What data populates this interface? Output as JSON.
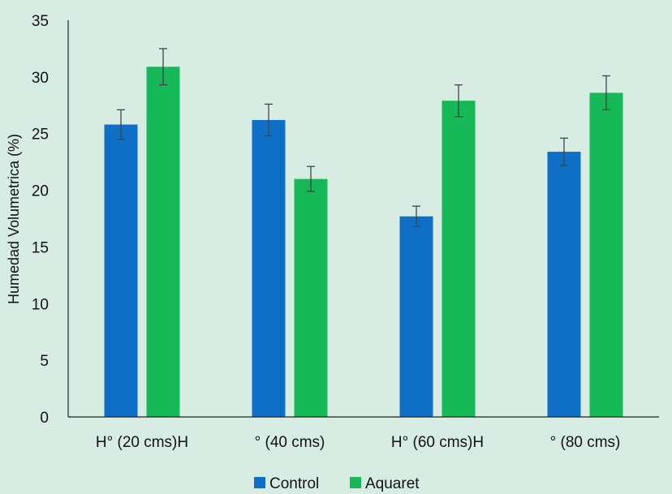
{
  "chart_data": {
    "type": "bar",
    "title": "",
    "xlabel": "",
    "ylabel": "Humedad Volumetrica (%)",
    "ylim": [
      0,
      35
    ],
    "yticks": [
      0,
      5,
      10,
      15,
      20,
      25,
      30,
      35
    ],
    "grid": false,
    "categories": [
      "H° (20 cms)H",
      "° (40 cms)",
      "H° (60 cms)H",
      "° (80 cms)"
    ],
    "series": [
      {
        "name": "Control",
        "color": "#0f6fc6",
        "values": [
          25.8,
          26.2,
          17.7,
          23.4
        ],
        "errors": [
          1.3,
          1.4,
          0.9,
          1.2
        ]
      },
      {
        "name": "Aquaret",
        "color": "#17b857",
        "values": [
          30.9,
          21.0,
          27.9,
          28.6
        ],
        "errors": [
          1.6,
          1.1,
          1.4,
          1.5
        ]
      }
    ],
    "legend_position": "bottom-center",
    "error_bar_color": "#444444",
    "axis_color": "#222222"
  }
}
